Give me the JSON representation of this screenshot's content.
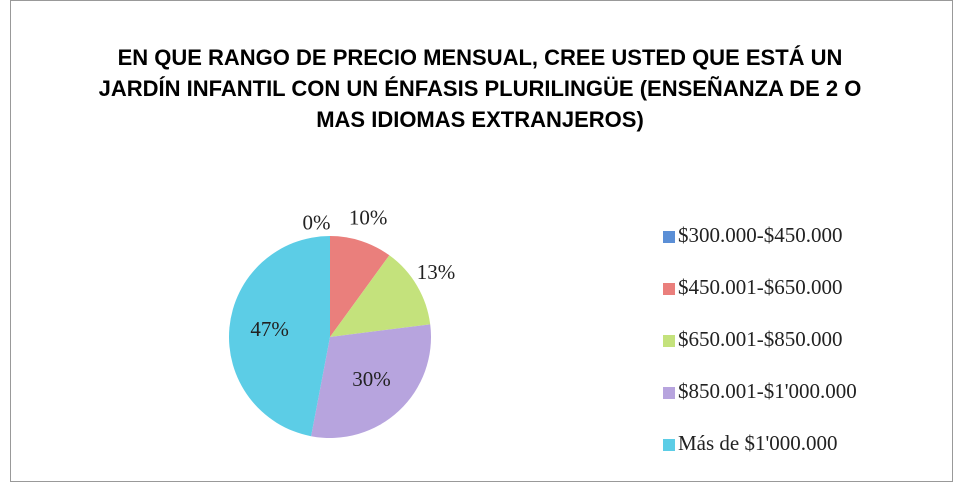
{
  "chart_data": {
    "type": "pie",
    "title": "EN QUE RANGO DE PRECIO MENSUAL, CREE USTED QUE ESTÁ UN JARDÍN INFANTIL CON UN ÉNFASIS PLURILINGÜE (ENSEÑANZA DE 2 O MAS IDIOMAS EXTRANJEROS)",
    "categories": [
      "$300.000-$450.000",
      "$450.001-$650.000",
      "$650.001-$850.000",
      "$850.001-$1'000.000",
      "Más de $1'000.000"
    ],
    "values": [
      0,
      10,
      13,
      30,
      47
    ],
    "value_labels": [
      "0%",
      "10%",
      "13%",
      "30%",
      "47%"
    ],
    "colors": [
      "#5b8fd6",
      "#ea7f7c",
      "#c4e27c",
      "#b7a4de",
      "#5ccde6"
    ],
    "legend": "right"
  }
}
